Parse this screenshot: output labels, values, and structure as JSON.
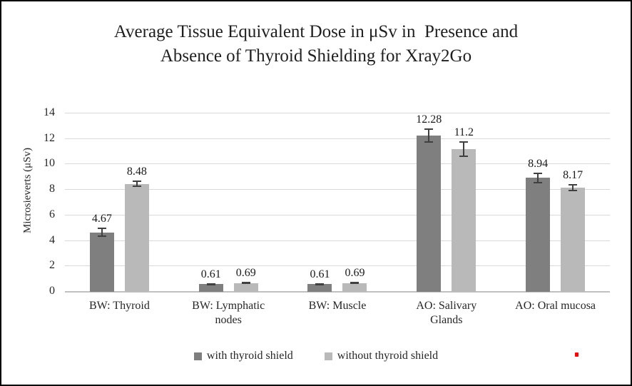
{
  "chart_data": {
    "type": "bar",
    "title": "Average Tissue Equivalent Dose in μSv in  Presence and\nAbsence of Thyroid Shielding for Xray2Go",
    "xlabel": "",
    "ylabel": "Microsieverts (μSv)",
    "ylim": [
      0,
      14
    ],
    "yticks": [
      "0",
      "2",
      "4",
      "6",
      "8",
      "10",
      "12",
      "14"
    ],
    "grid": true,
    "legend_position": "bottom",
    "categories": [
      "BW: Thyroid",
      "BW: Lymphatic\nnodes",
      "BW: Muscle",
      "AO: Salivary\nGlands",
      "AO: Oral mucosa"
    ],
    "series": [
      {
        "name": "with thyroid shield",
        "color": "#7f7f7f",
        "values": [
          4.67,
          0.61,
          0.61,
          12.28,
          8.94
        ],
        "labels": [
          "4.67",
          "0.61",
          "0.61",
          "12.28",
          "8.94"
        ],
        "errors": [
          0.35,
          0.08,
          0.08,
          0.55,
          0.4
        ]
      },
      {
        "name": "without thyroid shield",
        "color": "#b9b9b9",
        "values": [
          8.48,
          0.69,
          0.69,
          11.2,
          8.17
        ],
        "labels": [
          "8.48",
          "0.69",
          "0.69",
          "11.2",
          "8.17"
        ],
        "errors": [
          0.25,
          0.07,
          0.07,
          0.6,
          0.3
        ]
      }
    ],
    "colors": {
      "gridline": "#d9d9d9",
      "axis_line": "#c0c0c0",
      "error_bar": "#404040",
      "text": "#262626",
      "title_text": "#1f1f1f"
    }
  },
  "artifact": {
    "color": "#ff0000"
  }
}
